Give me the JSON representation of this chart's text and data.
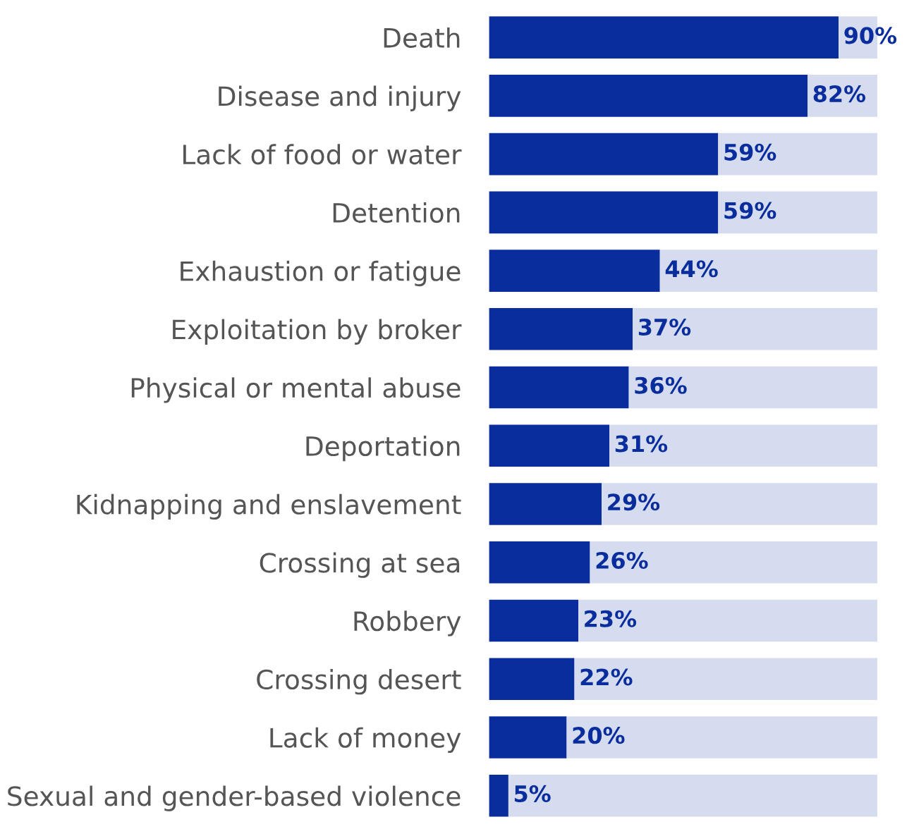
{
  "chart_data": {
    "type": "bar",
    "orientation": "horizontal",
    "stacked": true,
    "categories": [
      "Death",
      "Disease and injury",
      "Lack of food or water",
      "Detention",
      "Exhaustion or fatigue",
      "Exploitation by broker",
      "Physical or mental abuse",
      "Deportation",
      "Kidnapping and enslavement",
      "Crossing at sea",
      "Robbery",
      "Crossing desert",
      "Lack of money",
      "Sexual and gender-based violence"
    ],
    "series": [
      {
        "color": "#0a2d9e",
        "values": [
          90,
          82,
          59,
          59,
          44,
          37,
          36,
          31,
          29,
          26,
          23,
          22,
          20,
          5
        ],
        "value_labels": [
          "90%",
          "82%",
          "59%",
          "59%",
          "44%",
          "37%",
          "36%",
          "31%",
          "29%",
          "26%",
          "23%",
          "22%",
          "20%",
          "5%"
        ]
      },
      {
        "color": "#d6dcef",
        "values": [
          10,
          18,
          41,
          41,
          56,
          63,
          64,
          69,
          71,
          74,
          77,
          78,
          80,
          95
        ]
      }
    ],
    "xlim": [
      0,
      100
    ],
    "tick_labels": "y",
    "grid": false,
    "legend": false
  }
}
